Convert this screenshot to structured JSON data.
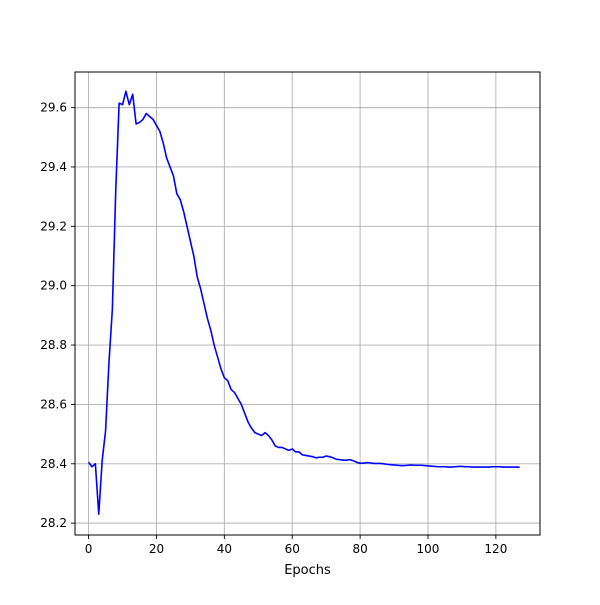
{
  "chart_data": {
    "type": "line",
    "title": "",
    "xlabel": "Epochs",
    "ylabel": "",
    "xlim": [
      -4,
      133
    ],
    "ylim": [
      28.16,
      29.72
    ],
    "grid": true,
    "x_ticks": [
      0,
      20,
      40,
      60,
      80,
      100,
      120
    ],
    "y_ticks": [
      28.2,
      28.4,
      28.6,
      28.8,
      29.0,
      29.2,
      29.4,
      29.6
    ],
    "x_tick_labels": [
      "0",
      "20",
      "40",
      "60",
      "80",
      "100",
      "120"
    ],
    "y_tick_labels": [
      "28.2",
      "28.4",
      "28.6",
      "28.8",
      "29.0",
      "29.2",
      "29.4",
      "29.6"
    ],
    "series": [
      {
        "color": "#0000ff",
        "x": [
          0,
          1,
          2,
          3,
          4,
          5,
          6,
          7,
          8,
          9,
          10,
          11,
          12,
          13,
          14,
          15,
          16,
          17,
          18,
          19,
          20,
          21,
          22,
          23,
          24,
          25,
          26,
          27,
          28,
          29,
          30,
          31,
          32,
          33,
          34,
          35,
          36,
          37,
          38,
          39,
          40,
          41,
          42,
          43,
          44,
          45,
          46,
          47,
          48,
          49,
          50,
          51,
          52,
          53,
          54,
          55,
          56,
          57,
          58,
          59,
          60,
          61,
          62,
          63,
          64,
          65,
          66,
          67,
          68,
          69,
          70,
          71,
          72,
          73,
          74,
          75,
          76,
          77,
          78,
          79,
          80,
          81,
          82,
          83,
          84,
          85,
          86,
          87,
          88,
          89,
          90,
          91,
          92,
          93,
          94,
          95,
          96,
          97,
          98,
          99,
          100,
          101,
          102,
          103,
          104,
          105,
          106,
          107,
          108,
          109,
          110,
          111,
          112,
          113,
          114,
          115,
          116,
          117,
          118,
          119,
          120,
          121,
          122,
          123,
          124,
          125,
          126,
          127
        ],
        "values": [
          28.405,
          28.39,
          28.4,
          28.23,
          28.41,
          28.51,
          28.74,
          28.92,
          29.32,
          29.615,
          29.61,
          29.655,
          29.61,
          29.645,
          29.545,
          29.55,
          29.56,
          29.58,
          29.57,
          29.56,
          29.54,
          29.52,
          29.48,
          29.43,
          29.4,
          29.37,
          29.31,
          29.29,
          29.25,
          29.2,
          29.15,
          29.1,
          29.03,
          28.99,
          28.94,
          28.89,
          28.85,
          28.8,
          28.76,
          28.72,
          28.69,
          28.68,
          28.65,
          28.64,
          28.62,
          28.6,
          28.57,
          28.54,
          28.52,
          28.505,
          28.5,
          28.495,
          28.505,
          28.495,
          28.48,
          28.46,
          28.455,
          28.455,
          28.45,
          28.445,
          28.45,
          28.44,
          28.44,
          28.43,
          28.428,
          28.426,
          28.424,
          28.42,
          28.422,
          28.422,
          28.426,
          28.424,
          28.42,
          28.415,
          28.414,
          28.412,
          28.412,
          28.414,
          28.41,
          28.405,
          28.402,
          28.402,
          28.404,
          28.403,
          28.401,
          28.401,
          28.401,
          28.4,
          28.398,
          28.397,
          28.396,
          28.395,
          28.394,
          28.394,
          28.395,
          28.396,
          28.395,
          28.395,
          28.395,
          28.394,
          28.393,
          28.392,
          28.391,
          28.39,
          28.39,
          28.39,
          28.389,
          28.389,
          28.39,
          28.391,
          28.391,
          28.39,
          28.39,
          28.389,
          28.389,
          28.389,
          28.389,
          28.389,
          28.389,
          28.39,
          28.39,
          28.39,
          28.389,
          28.389,
          28.389,
          28.389,
          28.389,
          28.388
        ]
      }
    ]
  }
}
